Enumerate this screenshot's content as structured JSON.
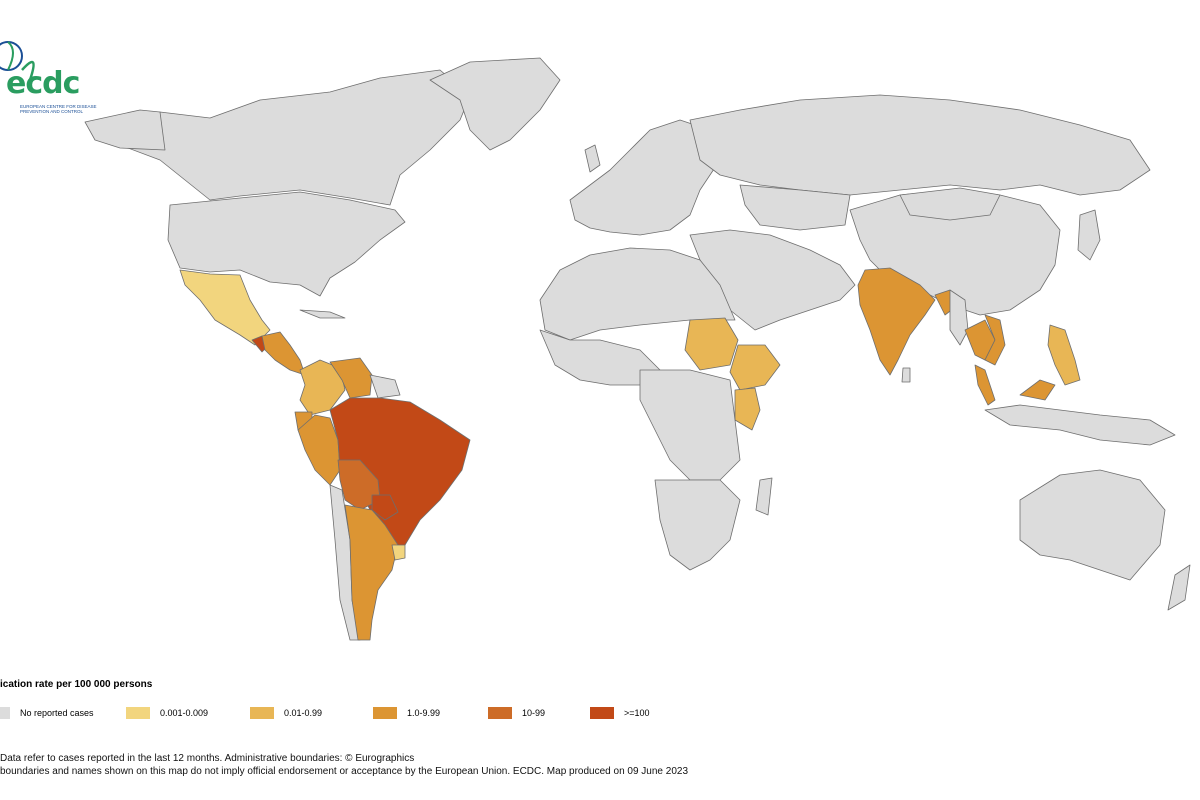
{
  "logo": {
    "text": "ecdc",
    "subtitle": "European Centre for Disease Prevention and Control"
  },
  "colors": {
    "no_data": "#dcdcdc",
    "border": "#6e6e6e",
    "ocean": "#ffffff",
    "c1": "#f2d57e",
    "c2": "#e8b655",
    "c3": "#dc9533",
    "c4": "#cd6c28",
    "c5": "#c24917"
  },
  "legend": {
    "title": "ication rate per 100 000 persons",
    "items": [
      {
        "label": "No reported cases",
        "color": "#dcdcdc"
      },
      {
        "label": "0.001-0.009",
        "color": "#f2d57e"
      },
      {
        "label": "0.01-0.99",
        "color": "#e8b655"
      },
      {
        "label": "1.0-9.99",
        "color": "#dc9533"
      },
      {
        "label": "10-99",
        "color": "#cd6c28"
      },
      {
        "label": ">=100",
        "color": "#c24917"
      }
    ]
  },
  "notes": {
    "line1": "Data refer to cases reported in the last 12 months. Administrative boundaries: © Eurographics",
    "line2": "boundaries and names shown on this map do not imply official endorsement or acceptance by the European Union. ECDC. Map produced on 09 June 2023"
  }
}
